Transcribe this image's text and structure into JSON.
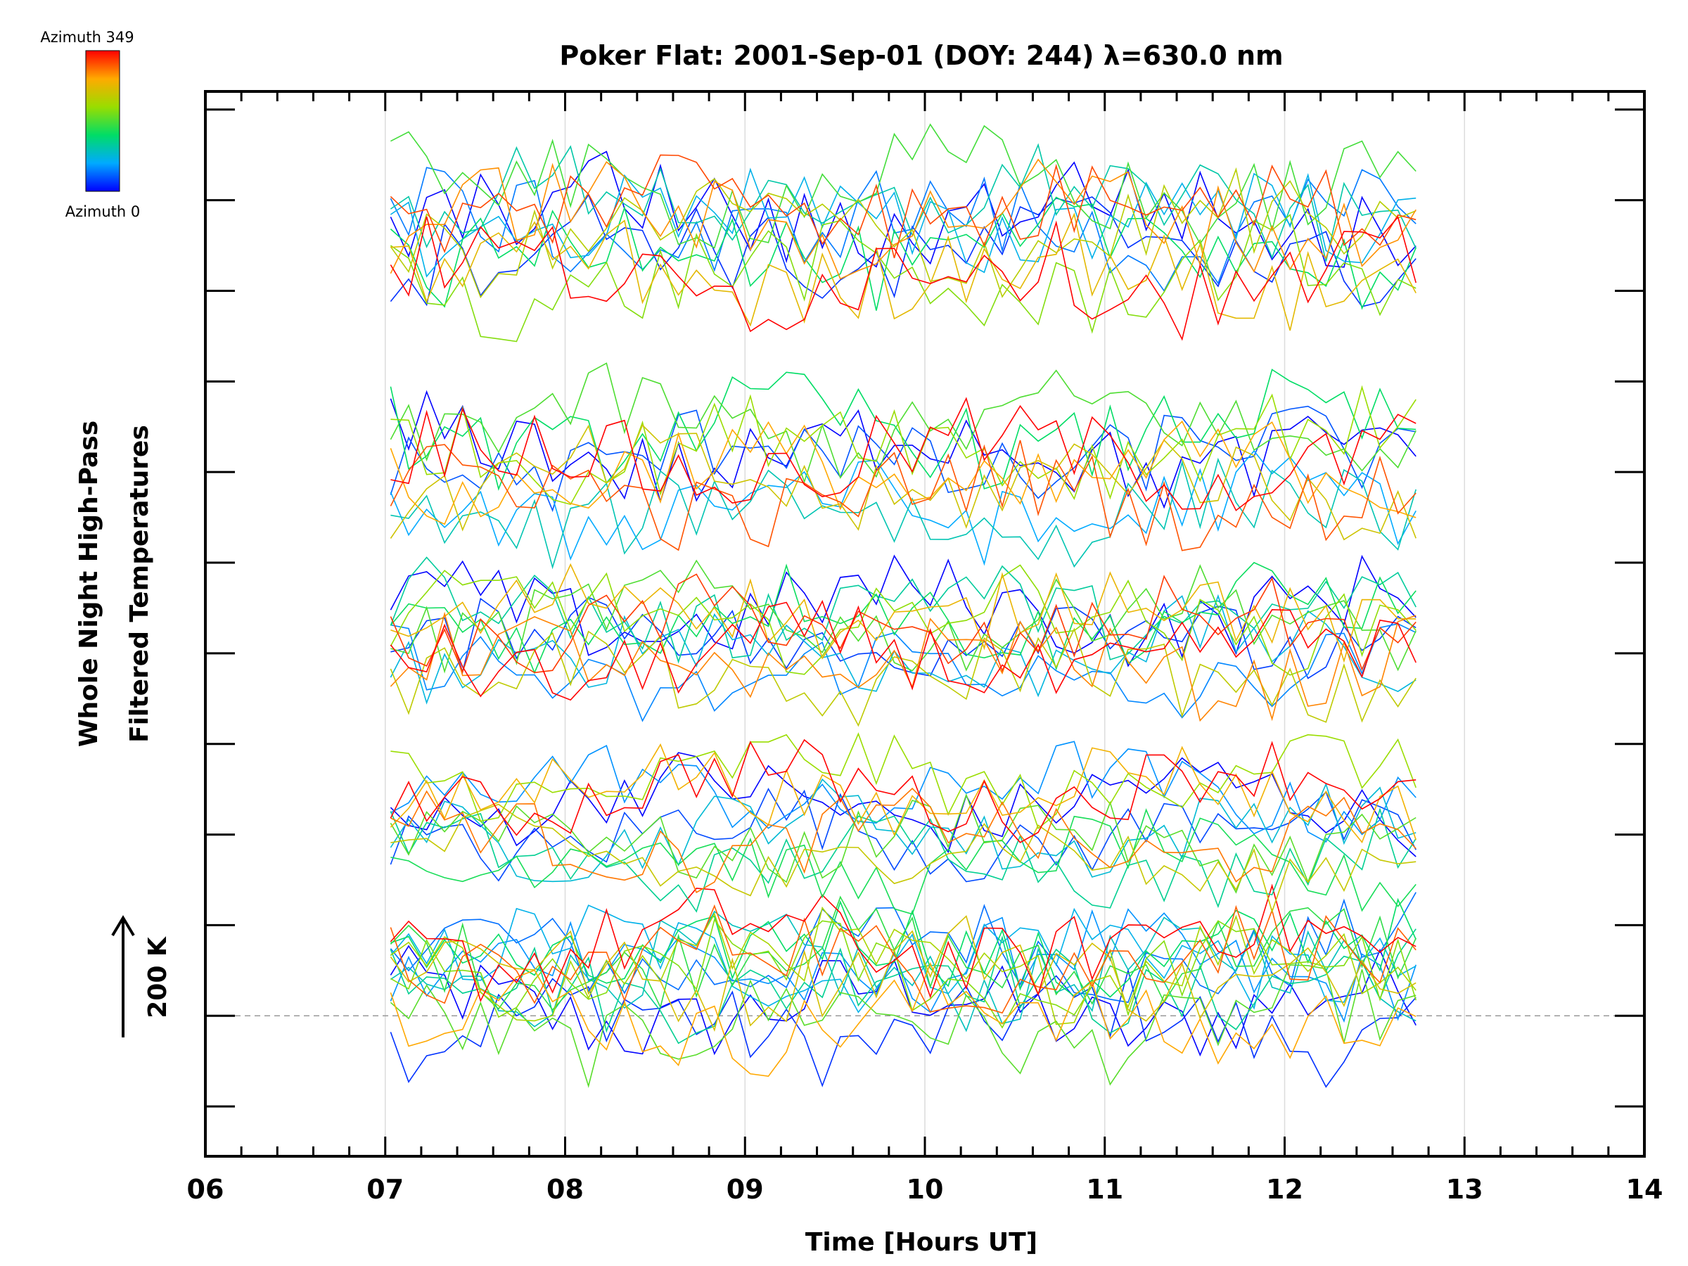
{
  "chart_data": {
    "type": "line",
    "title": "Poker Flat: 2001-Sep-01 (DOY: 244) λ=630.0 nm",
    "xlabel": "Time [Hours UT]",
    "ylabel_line1": "Whole Night High-Pass",
    "ylabel_line2": "Filtered Temperatures",
    "xlim": [
      6,
      14
    ],
    "x_ticks": [
      "06",
      "07",
      "08",
      "09",
      "10",
      "11",
      "12",
      "13",
      "14"
    ],
    "y_units_per_major_tick": 1,
    "ylim": [
      -1.55,
      10.2
    ],
    "scale_arrow_label": "200 K",
    "colorbar": {
      "top_label": "Azimuth 349",
      "bottom_label": "Azimuth 0",
      "colors": [
        "#0000ff",
        "#00aaff",
        "#00dd66",
        "#99dd00",
        "#ffaa00",
        "#ff0000"
      ]
    },
    "grid": "vertical",
    "baseline": 0,
    "time_range": [
      7.03,
      12.73
    ],
    "sample_step_hours": 0.1,
    "bands": [
      {
        "offset": 0.3,
        "azimuths": [
          0,
          20,
          45,
          60,
          80,
          100,
          120,
          140,
          160,
          180,
          200,
          220,
          250,
          280,
          310,
          349
        ],
        "amplitude": 0.55
      },
      {
        "offset": 2.2,
        "azimuths": [
          0,
          30,
          60,
          90,
          120,
          150,
          180,
          210,
          240,
          270,
          300,
          349
        ],
        "amplitude": 0.45
      },
      {
        "offset": 4.0,
        "azimuths": [
          0,
          25,
          55,
          85,
          115,
          145,
          175,
          205,
          235,
          265,
          295,
          325,
          349
        ],
        "amplitude": 0.5
      },
      {
        "offset": 6.0,
        "azimuths": [
          0,
          35,
          70,
          105,
          140,
          175,
          210,
          245,
          280,
          315,
          349
        ],
        "amplitude": 0.55
      },
      {
        "offset": 8.6,
        "azimuths": [
          0,
          20,
          50,
          80,
          110,
          140,
          170,
          200,
          230,
          260,
          290,
          320,
          349
        ],
        "amplitude": 0.6
      }
    ]
  }
}
